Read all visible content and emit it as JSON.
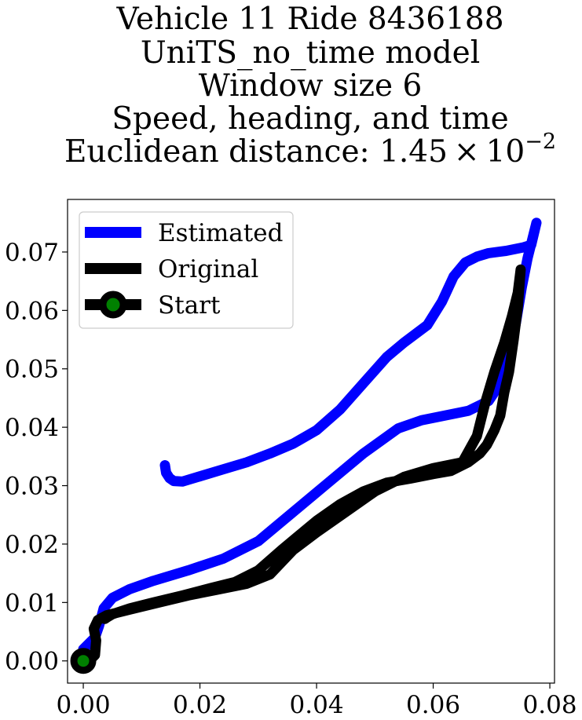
{
  "chart_data": {
    "type": "line",
    "title_lines": [
      "Vehicle 11 Ride 8436188",
      "UniTS_no_time model",
      "Window size 6",
      "Speed, heading, and time"
    ],
    "title_distance_prefix": "Euclidean distance: ",
    "title_distance_mantissa": "1.45",
    "title_distance_times": "×",
    "title_distance_base": "10",
    "title_distance_exponent": "−2",
    "xlabel": "",
    "ylabel": "",
    "xlim": [
      -0.0027,
      0.0808
    ],
    "ylim": [
      -0.0038,
      0.079
    ],
    "x_ticks": [
      0.0,
      0.02,
      0.04,
      0.06,
      0.08
    ],
    "x_tick_labels": [
      "0.00",
      "0.02",
      "0.04",
      "0.06",
      "0.08"
    ],
    "y_ticks": [
      0.0,
      0.01,
      0.02,
      0.03,
      0.04,
      0.05,
      0.06,
      0.07
    ],
    "y_tick_labels": [
      "0.00",
      "0.01",
      "0.02",
      "0.03",
      "0.04",
      "0.05",
      "0.06",
      "0.07"
    ],
    "grid": false,
    "legend_position": "top-left",
    "series": [
      {
        "name": "Estimated",
        "color": "#0000ff",
        "x": [
          0.0,
          0.001,
          0.002,
          0.0027,
          0.0035,
          0.005,
          0.008,
          0.012,
          0.018,
          0.024,
          0.03,
          0.036,
          0.042,
          0.048,
          0.054,
          0.058,
          0.062,
          0.066,
          0.0695,
          0.0715,
          0.073,
          0.0742,
          0.0752,
          0.0762,
          0.0772,
          0.0777,
          0.0768,
          0.0755,
          0.0725,
          0.0695,
          0.0675,
          0.0655,
          0.0635,
          0.0615,
          0.059,
          0.055,
          0.052,
          0.048,
          0.044,
          0.04,
          0.036,
          0.032,
          0.028,
          0.024,
          0.02,
          0.017,
          0.0155,
          0.0148,
          0.0142,
          0.014
        ],
        "y": [
          0.002,
          0.003,
          0.004,
          0.006,
          0.009,
          0.0108,
          0.0123,
          0.0137,
          0.0155,
          0.0175,
          0.0205,
          0.0255,
          0.0305,
          0.0355,
          0.0398,
          0.0412,
          0.042,
          0.0428,
          0.0445,
          0.0475,
          0.052,
          0.058,
          0.064,
          0.069,
          0.073,
          0.075,
          0.0712,
          0.0708,
          0.0702,
          0.0698,
          0.0692,
          0.0682,
          0.0658,
          0.0615,
          0.0575,
          0.0545,
          0.052,
          0.0475,
          0.043,
          0.0395,
          0.0372,
          0.0355,
          0.034,
          0.0328,
          0.0316,
          0.0307,
          0.0308,
          0.0313,
          0.0322,
          0.0335
        ]
      },
      {
        "name": "Original",
        "color": "#000000",
        "x": [
          0.0,
          0.001,
          0.002,
          0.0022,
          0.0018,
          0.0025,
          0.004,
          0.008,
          0.013,
          0.018,
          0.023,
          0.028,
          0.032,
          0.036,
          0.04,
          0.045,
          0.05,
          0.055,
          0.06,
          0.065,
          0.0675,
          0.069,
          0.0705,
          0.0722,
          0.0735,
          0.0745,
          0.075,
          0.0745,
          0.0738,
          0.073,
          0.0722,
          0.0715,
          0.0705,
          0.0692,
          0.068,
          0.066,
          0.063,
          0.06,
          0.056,
          0.052,
          0.048,
          0.044,
          0.04,
          0.037,
          0.034,
          0.03,
          0.026,
          0.022,
          0.017,
          0.012,
          0.008,
          0.005,
          0.004,
          0.0037
        ],
        "y": [
          0.0,
          0.0,
          0.001,
          0.0035,
          0.0055,
          0.007,
          0.0078,
          0.0088,
          0.01,
          0.0112,
          0.0122,
          0.0132,
          0.0148,
          0.019,
          0.022,
          0.0255,
          0.029,
          0.0315,
          0.033,
          0.034,
          0.0385,
          0.0445,
          0.0495,
          0.0545,
          0.059,
          0.063,
          0.067,
          0.0605,
          0.055,
          0.0495,
          0.046,
          0.042,
          0.0395,
          0.037,
          0.0355,
          0.034,
          0.0325,
          0.032,
          0.0312,
          0.0305,
          0.029,
          0.0268,
          0.024,
          0.0215,
          0.019,
          0.0155,
          0.0135,
          0.0125,
          0.0112,
          0.01,
          0.009,
          0.008,
          0.0074,
          0.0072
        ]
      }
    ],
    "legend": [
      {
        "name": "Estimated",
        "color": "#0000ff",
        "style": "line"
      },
      {
        "name": "Original",
        "color": "#000000",
        "style": "line"
      },
      {
        "name": "Start",
        "color": "#000000",
        "marker_color": "#008000",
        "style": "line-marker"
      }
    ],
    "start_point": {
      "x": 0.0,
      "y": 0.0,
      "edge_color": "#000000",
      "face_color": "#008000"
    }
  }
}
